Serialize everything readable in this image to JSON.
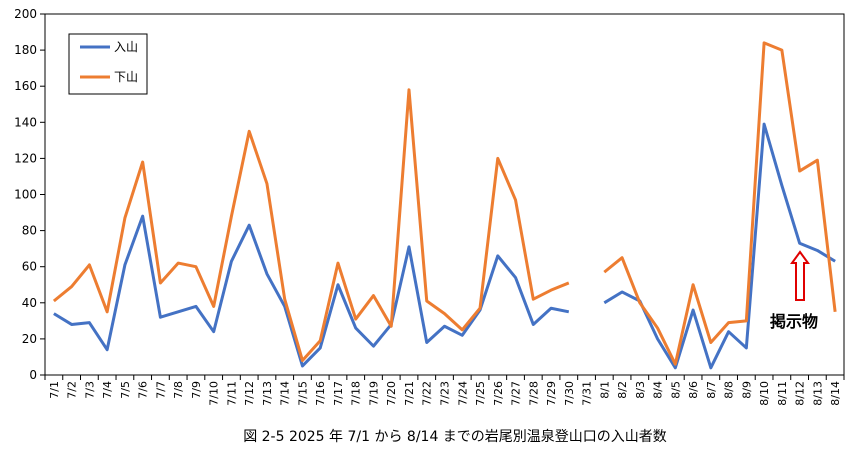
{
  "chart_data": {
    "type": "line",
    "caption": "図 2-5 2025 年 7/1 から 8/14 までの岩尾別温泉登山口の入山者数",
    "ylim": [
      0,
      200
    ],
    "yticks": [
      0,
      20,
      40,
      60,
      80,
      100,
      120,
      140,
      160,
      180,
      200
    ],
    "grid": false,
    "legend_position": "top-left",
    "annotation": "掲示物",
    "categories": [
      "7/1",
      "7/2",
      "7/3",
      "7/4",
      "7/5",
      "7/6",
      "7/7",
      "7/8",
      "7/9",
      "7/10",
      "7/11",
      "7/12",
      "7/13",
      "7/14",
      "7/15",
      "7/16",
      "7/17",
      "7/18",
      "7/19",
      "7/20",
      "7/21",
      "7/22",
      "7/23",
      "7/24",
      "7/25",
      "7/26",
      "7/27",
      "7/28",
      "7/29",
      "7/30",
      "7/31",
      "8/1",
      "8/2",
      "8/3",
      "8/4",
      "8/5",
      "8/6",
      "8/7",
      "8/8",
      "8/9",
      "8/10",
      "8/11",
      "8/12",
      "8/13",
      "8/14"
    ],
    "series": [
      {
        "name": "入山",
        "color": "#4472C4",
        "values": [
          34,
          28,
          29,
          14,
          61,
          88,
          32,
          35,
          38,
          24,
          63,
          83,
          56,
          38,
          5,
          15,
          50,
          26,
          16,
          28,
          71,
          18,
          27,
          22,
          36,
          66,
          54,
          28,
          37,
          35,
          null,
          40,
          46,
          41,
          20,
          4,
          36,
          4,
          24,
          15,
          139,
          105,
          73,
          69,
          63
        ]
      },
      {
        "name": "下山",
        "color": "#ED7D31",
        "values": [
          41,
          49,
          61,
          35,
          87,
          118,
          51,
          62,
          60,
          38,
          88,
          135,
          106,
          42,
          8,
          19,
          62,
          31,
          44,
          27,
          158,
          41,
          34,
          25,
          37,
          120,
          97,
          42,
          47,
          51,
          null,
          57,
          65,
          40,
          26,
          6,
          50,
          18,
          29,
          30,
          184,
          180,
          113,
          119,
          35
        ]
      }
    ]
  }
}
